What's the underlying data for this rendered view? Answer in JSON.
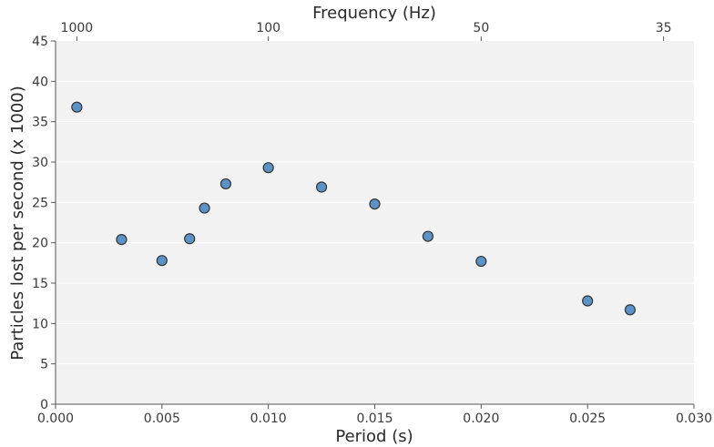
{
  "chart_data": {
    "type": "scatter",
    "title": "",
    "xlabel": "Period (s)",
    "ylabel": "Particles lost per second (x 1000)",
    "x2label": "Frequency (Hz)",
    "xlim": [
      0,
      0.03
    ],
    "ylim": [
      0,
      45
    ],
    "grid": true,
    "xticks": [
      "0.000",
      "0.005",
      "0.010",
      "0.015",
      "0.020",
      "0.025",
      "0.030"
    ],
    "yticks": [
      "0",
      "5",
      "10",
      "15",
      "20",
      "25",
      "30",
      "35",
      "40",
      "45"
    ],
    "x2ticks": [
      {
        "label": "1000",
        "period": 0.001
      },
      {
        "label": "100",
        "period": 0.01
      },
      {
        "label": "50",
        "period": 0.02
      },
      {
        "label": "35",
        "period": 0.0285714
      }
    ],
    "points": [
      {
        "x": 0.001,
        "y": 36.8
      },
      {
        "x": 0.0031,
        "y": 20.4
      },
      {
        "x": 0.005,
        "y": 17.8
      },
      {
        "x": 0.0063,
        "y": 20.5
      },
      {
        "x": 0.007,
        "y": 24.3
      },
      {
        "x": 0.008,
        "y": 27.3
      },
      {
        "x": 0.01,
        "y": 29.3
      },
      {
        "x": 0.0125,
        "y": 26.9
      },
      {
        "x": 0.015,
        "y": 24.8
      },
      {
        "x": 0.0175,
        "y": 20.8
      },
      {
        "x": 0.02,
        "y": 17.7
      },
      {
        "x": 0.025,
        "y": 12.8
      },
      {
        "x": 0.027,
        "y": 11.7
      }
    ],
    "colors": {
      "point_fill": "#5b93c7",
      "point_stroke": "#333333",
      "plot_bg": "#f2f2f2",
      "grid": "#ffffff",
      "axis": "#555555"
    }
  }
}
